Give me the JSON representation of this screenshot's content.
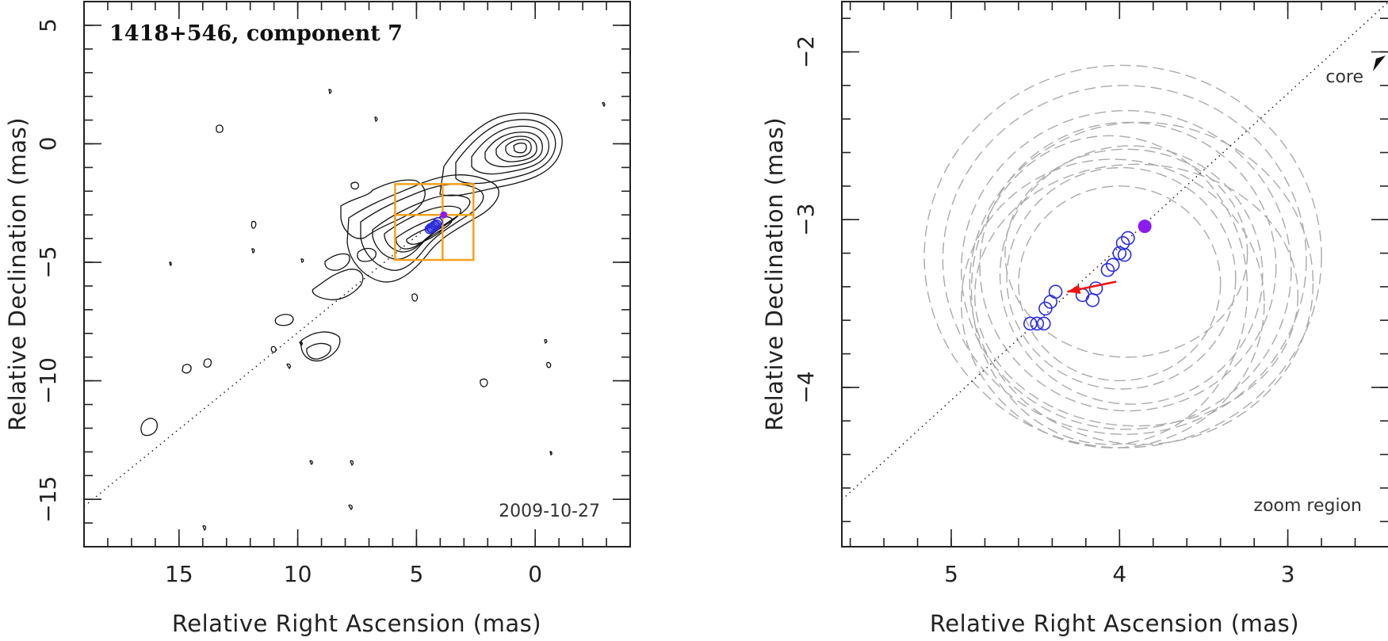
{
  "chart_data": [
    {
      "type": "scatter",
      "panel": "left",
      "title": "1418+546, component 7",
      "date_label": "2009-10-27",
      "xlabel": "Relative Right Ascension (mas)",
      "ylabel": "Relative Declination (mas)",
      "xlim": [
        19.0,
        -4.0
      ],
      "ylim": [
        -17.0,
        6.0
      ],
      "xticks": [
        15,
        10,
        5,
        0
      ],
      "yticks": [
        5,
        0,
        -5,
        -10,
        -15
      ],
      "xtick_labels": [
        "15",
        "10",
        "5",
        "0"
      ],
      "ytick_labels": [
        "5",
        "0",
        "−5",
        "−10",
        "−15"
      ],
      "jet_line": {
        "from": [
          19.0,
          -15.3
        ],
        "to": [
          3.9,
          -3.0
        ]
      },
      "zoom_box": {
        "x": [
          2.6,
          5.9
        ],
        "y": [
          -4.9,
          -1.7
        ],
        "dividers": {
          "x": 3.9,
          "y": -3.0
        }
      },
      "component_positions": {
        "x": [
          4.45,
          4.4,
          4.3,
          4.2,
          4.15,
          4.1,
          4.35,
          4.25
        ],
        "y": [
          -3.6,
          -3.55,
          -3.5,
          -3.45,
          -3.4,
          -3.3,
          -3.55,
          -3.45
        ]
      },
      "core_marker": {
        "x": 3.85,
        "y": -3.0
      },
      "colors": {
        "box": "#f5a21e",
        "points": "#2c2cde",
        "core": "#8a1cf0",
        "arrow": "#ee1111"
      }
    },
    {
      "type": "scatter",
      "panel": "right",
      "title": "",
      "annotation_core": "core",
      "annotation_zoom": "zoom region",
      "xlabel": "Relative Right Ascension (mas)",
      "ylabel": "Relative Declination (mas)",
      "xlim": [
        5.65,
        2.4
      ],
      "ylim": [
        -4.95,
        -1.7
      ],
      "xticks": [
        5,
        4,
        3
      ],
      "yticks": [
        -2,
        -3,
        -4
      ],
      "xtick_labels": [
        "5",
        "4",
        "3"
      ],
      "ytick_labels": [
        "−2",
        "−3",
        "−4"
      ],
      "jet_line": {
        "from": [
          5.65,
          -4.67
        ],
        "to": [
          2.4,
          -1.7
        ]
      },
      "component_positions": {
        "x": [
          4.53,
          4.49,
          4.45,
          4.44,
          4.41,
          4.38,
          4.22,
          4.16,
          4.14,
          4.07,
          4.04,
          4.0,
          3.98,
          3.95,
          3.97
        ],
        "y": [
          -3.62,
          -3.62,
          -3.62,
          -3.53,
          -3.49,
          -3.43,
          -3.45,
          -3.48,
          -3.41,
          -3.3,
          -3.27,
          -3.2,
          -3.14,
          -3.11,
          -3.21
        ]
      },
      "core_marker": {
        "x": 3.85,
        "y": -3.04
      },
      "motion_arrow": {
        "from": [
          4.02,
          -3.37
        ],
        "to": [
          4.31,
          -3.43
        ]
      },
      "uncertainty_ellipses": [
        {
          "cx": 3.98,
          "cy": -3.22,
          "rx": 1.18,
          "ry": 1.14
        },
        {
          "cx": 3.97,
          "cy": -3.24,
          "rx": 1.08,
          "ry": 1.04
        },
        {
          "cx": 3.96,
          "cy": -3.3,
          "rx": 0.98,
          "ry": 0.95
        },
        {
          "cx": 3.95,
          "cy": -3.28,
          "rx": 0.88,
          "ry": 0.86
        },
        {
          "cx": 3.93,
          "cy": -3.33,
          "rx": 0.78,
          "ry": 0.77
        },
        {
          "cx": 3.99,
          "cy": -3.35,
          "rx": 0.68,
          "ry": 0.66
        },
        {
          "cx": 3.96,
          "cy": -3.2,
          "rx": 0.72,
          "ry": 0.62
        },
        {
          "cx": 4.0,
          "cy": -3.38,
          "rx": 0.6,
          "ry": 0.58
        },
        {
          "cx": 3.9,
          "cy": -3.45,
          "rx": 0.96,
          "ry": 0.78
        },
        {
          "cx": 4.04,
          "cy": -3.5,
          "rx": 0.9,
          "ry": 0.86
        },
        {
          "cx": 3.87,
          "cy": -3.38,
          "rx": 1.02,
          "ry": 0.96
        },
        {
          "cx": 4.06,
          "cy": -3.42,
          "rx": 0.82,
          "ry": 0.92
        }
      ],
      "colors": {
        "ellipses": "#aaaaaa",
        "points": "#2c2cde",
        "core": "#8a1cf0",
        "arrow": "#ee1111"
      }
    }
  ]
}
